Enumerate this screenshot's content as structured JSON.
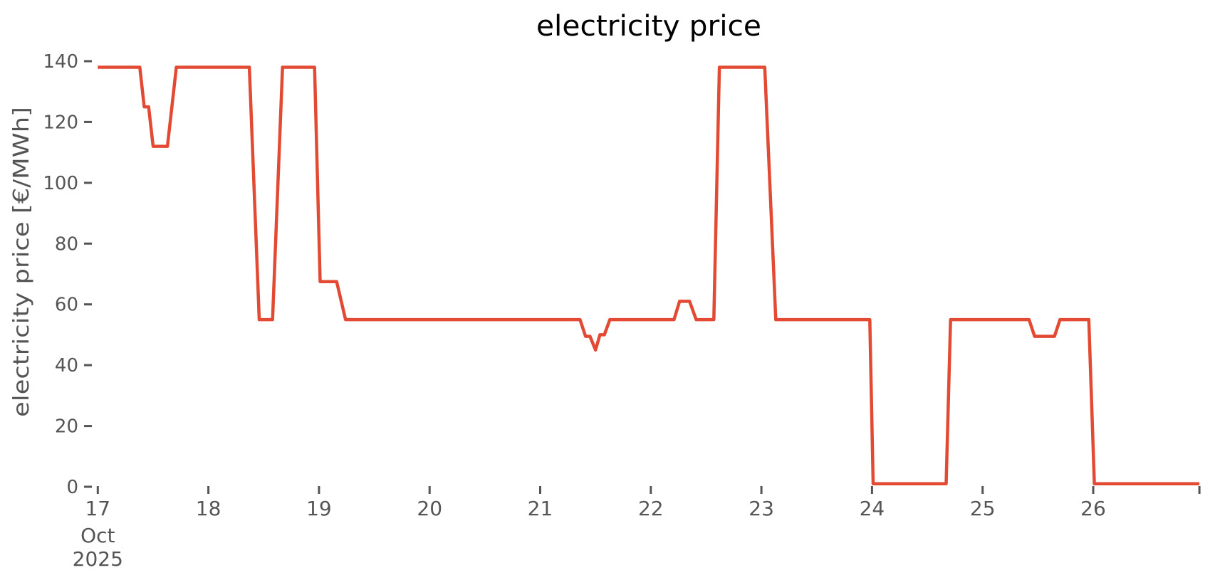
{
  "figure": {
    "title": "electricity price",
    "y_axis_label": "electricity price [€/MWh]"
  },
  "colors": {
    "line": "#e24a33",
    "tick_text": "#555555",
    "title_text": "#000000",
    "background": "#ffffff"
  },
  "chart_data": {
    "type": "line",
    "title": "electricity price",
    "xlabel": "",
    "ylabel": "electricity price [€/MWh]",
    "grid": false,
    "legend": "none",
    "x_axis": {
      "unit": "day of October 2025",
      "range_days": [
        17.0,
        26.96
      ],
      "ticks": [
        {
          "day": 17,
          "label": "17",
          "sublabels": [
            "Oct",
            "2025"
          ]
        },
        {
          "day": 18,
          "label": "18"
        },
        {
          "day": 19,
          "label": "19"
        },
        {
          "day": 20,
          "label": "20"
        },
        {
          "day": 21,
          "label": "21"
        },
        {
          "day": 22,
          "label": "22"
        },
        {
          "day": 23,
          "label": "23"
        },
        {
          "day": 24,
          "label": "24"
        },
        {
          "day": 25,
          "label": "25"
        },
        {
          "day": 26,
          "label": "26"
        },
        {
          "day": 26.96,
          "label": ""
        }
      ]
    },
    "y_axis": {
      "ticks": [
        0,
        20,
        40,
        60,
        80,
        100,
        120,
        140
      ],
      "range": [
        0,
        140
      ]
    },
    "series": [
      {
        "name": "electricity price",
        "color": "#e24a33",
        "points": [
          [
            17.0,
            138
          ],
          [
            17.38,
            138
          ],
          [
            17.42,
            125
          ],
          [
            17.46,
            125
          ],
          [
            17.5,
            112
          ],
          [
            17.63,
            112
          ],
          [
            17.71,
            138
          ],
          [
            18.37,
            138
          ],
          [
            18.46,
            55
          ],
          [
            18.58,
            55
          ],
          [
            18.67,
            138
          ],
          [
            18.96,
            138
          ],
          [
            19.01,
            67.5
          ],
          [
            19.16,
            67.5
          ],
          [
            19.24,
            55
          ],
          [
            21.36,
            55
          ],
          [
            21.41,
            49.5
          ],
          [
            21.45,
            49.5
          ],
          [
            21.5,
            45
          ],
          [
            21.54,
            50
          ],
          [
            21.58,
            50
          ],
          [
            21.63,
            55
          ],
          [
            22.21,
            55
          ],
          [
            22.26,
            61
          ],
          [
            22.35,
            61
          ],
          [
            22.41,
            55
          ],
          [
            22.57,
            55
          ],
          [
            22.62,
            138
          ],
          [
            23.03,
            138
          ],
          [
            23.13,
            55
          ],
          [
            23.98,
            55
          ],
          [
            24.01,
            1
          ],
          [
            24.67,
            1
          ],
          [
            24.71,
            55
          ],
          [
            25.42,
            55
          ],
          [
            25.47,
            49.5
          ],
          [
            25.65,
            49.5
          ],
          [
            25.7,
            55
          ],
          [
            25.96,
            55
          ],
          [
            26.01,
            1
          ],
          [
            26.96,
            1
          ]
        ]
      }
    ]
  }
}
